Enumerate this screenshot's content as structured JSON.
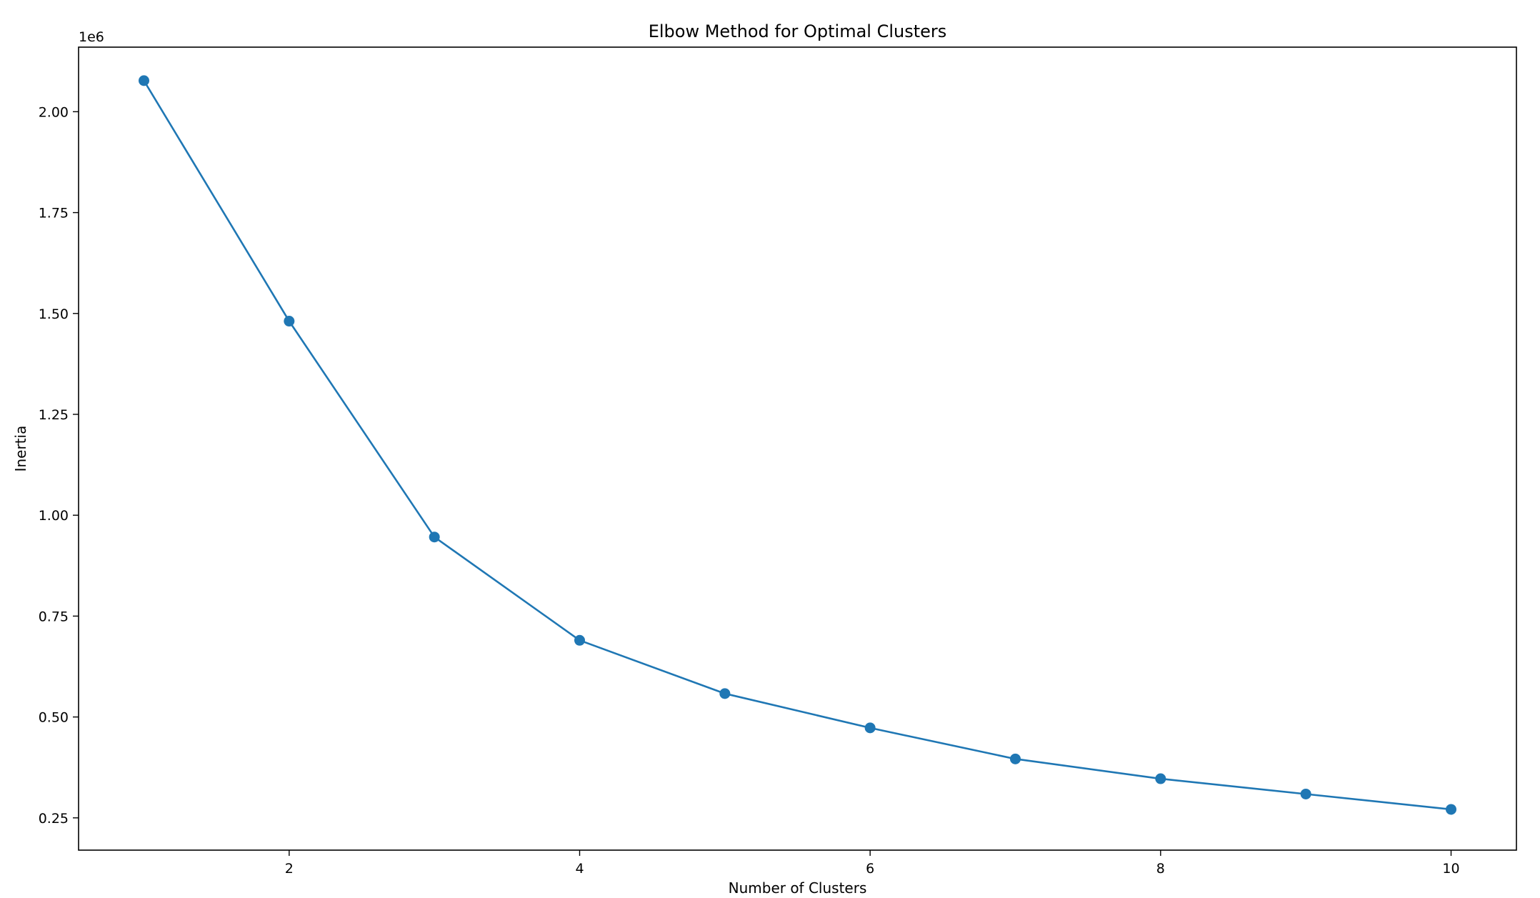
{
  "chart_data": {
    "type": "line",
    "title": "Elbow Method for Optimal Clusters",
    "xlabel": "Number of Clusters",
    "ylabel": "Inertia",
    "y_offset_label": "1e6",
    "y_scale": 1000000,
    "xlim": [
      0.55,
      10.45
    ],
    "ylim": [
      170000,
      2160000
    ],
    "xticks": [
      2,
      4,
      6,
      8,
      10
    ],
    "xtick_labels": [
      "2",
      "4",
      "6",
      "8",
      "10"
    ],
    "yticks": [
      250000,
      500000,
      750000,
      1000000,
      1250000,
      1500000,
      1750000,
      2000000
    ],
    "ytick_labels": [
      "0.25",
      "0.50",
      "0.75",
      "1.00",
      "1.25",
      "1.50",
      "1.75",
      "2.00"
    ],
    "grid": false,
    "series": [
      {
        "color": "#1f77b4",
        "marker": "circle",
        "x": [
          1,
          2,
          3,
          4,
          5,
          6,
          7,
          8,
          9,
          10
        ],
        "y": [
          2077000,
          1481000,
          946000,
          690000,
          558000,
          473000,
          396000,
          347000,
          309000,
          271000
        ]
      }
    ]
  }
}
